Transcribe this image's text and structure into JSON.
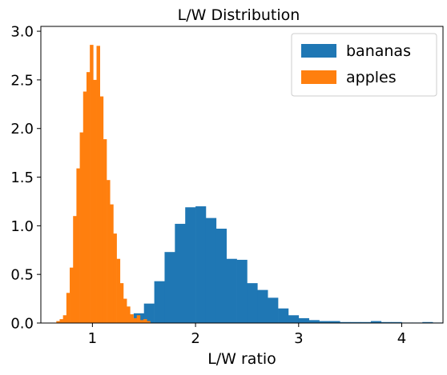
{
  "chart_data": {
    "type": "bar",
    "title": "L/W Distribution",
    "xlabel": "L/W ratio",
    "ylabel": "",
    "xlim": [
      0.5,
      4.4
    ],
    "ylim": [
      0,
      3.05
    ],
    "xticks": [
      1,
      2,
      3,
      4
    ],
    "yticks": [
      0.0,
      0.5,
      1.0,
      1.5,
      2.0,
      2.5,
      3.0
    ],
    "xtick_labels": [
      "1",
      "2",
      "3",
      "4"
    ],
    "ytick_labels": [
      "0.0",
      "0.5",
      "1.0",
      "1.5",
      "2.0",
      "2.5",
      "3.0"
    ],
    "legend_position": "upper-right",
    "grid": false,
    "series": [
      {
        "name": "bananas",
        "color": "#1f77b4",
        "bin_width": 0.1,
        "bins": [
          [
            1.3,
            0.03
          ],
          [
            1.4,
            0.1
          ],
          [
            1.5,
            0.2
          ],
          [
            1.6,
            0.43
          ],
          [
            1.7,
            0.73
          ],
          [
            1.8,
            1.02
          ],
          [
            1.9,
            1.19
          ],
          [
            2.0,
            1.2
          ],
          [
            2.1,
            1.08
          ],
          [
            2.2,
            0.97
          ],
          [
            2.3,
            0.66
          ],
          [
            2.4,
            0.65
          ],
          [
            2.5,
            0.41
          ],
          [
            2.6,
            0.34
          ],
          [
            2.7,
            0.26
          ],
          [
            2.8,
            0.15
          ],
          [
            2.9,
            0.08
          ],
          [
            3.0,
            0.05
          ],
          [
            3.1,
            0.03
          ],
          [
            3.2,
            0.02
          ],
          [
            3.3,
            0.02
          ],
          [
            3.4,
            0.01
          ],
          [
            3.5,
            0.01
          ],
          [
            3.6,
            0.01
          ],
          [
            3.7,
            0.02
          ],
          [
            3.8,
            0.01
          ],
          [
            3.9,
            0.01
          ],
          [
            4.0,
            0.005
          ],
          [
            4.1,
            0.005
          ],
          [
            4.2,
            0.01
          ],
          [
            4.3,
            0.005
          ]
        ]
      },
      {
        "name": "apples",
        "color": "#ff7f0e",
        "bin_width": 0.0325,
        "bins": [
          [
            0.65,
            0.02
          ],
          [
            0.6825,
            0.04
          ],
          [
            0.715,
            0.08
          ],
          [
            0.7475,
            0.31
          ],
          [
            0.78,
            0.57
          ],
          [
            0.8125,
            1.1
          ],
          [
            0.845,
            1.59
          ],
          [
            0.8775,
            1.96
          ],
          [
            0.91,
            2.38
          ],
          [
            0.9425,
            2.58
          ],
          [
            0.975,
            2.86
          ],
          [
            1.0075,
            2.5
          ],
          [
            1.04,
            2.85
          ],
          [
            1.0725,
            2.33
          ],
          [
            1.105,
            1.89
          ],
          [
            1.1375,
            1.47
          ],
          [
            1.17,
            1.22
          ],
          [
            1.2025,
            0.92
          ],
          [
            1.235,
            0.66
          ],
          [
            1.2675,
            0.41
          ],
          [
            1.3,
            0.25
          ],
          [
            1.3325,
            0.17
          ],
          [
            1.365,
            0.09
          ],
          [
            1.3975,
            0.05
          ],
          [
            1.43,
            0.08
          ],
          [
            1.4625,
            0.03
          ],
          [
            1.495,
            0.04
          ],
          [
            1.5275,
            0.02
          ]
        ]
      }
    ]
  }
}
